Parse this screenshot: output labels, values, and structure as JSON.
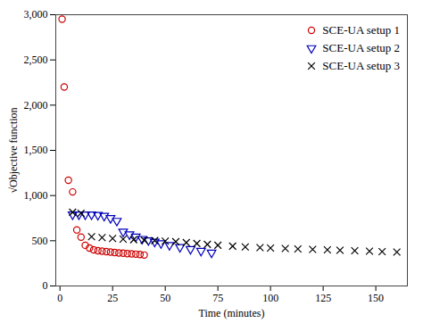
{
  "chart_data": {
    "type": "scatter",
    "xlabel": "Time (minutes)",
    "ylabel": "√Objective function",
    "xlim": [
      -2,
      165
    ],
    "ylim": [
      0,
      3000
    ],
    "xticks": [
      0,
      25,
      50,
      75,
      100,
      125,
      150
    ],
    "yticks": [
      0,
      500,
      1000,
      1500,
      2000,
      2500,
      3000
    ],
    "grid": false,
    "legend": "upper right",
    "series": [
      {
        "name": "SCE-UA setup 1",
        "color": "#cc0000",
        "marker": "circle",
        "x": [
          1,
          2,
          4,
          6,
          8,
          10,
          12,
          14,
          16,
          18,
          20,
          22,
          24,
          26,
          28,
          30,
          32,
          34,
          36,
          38,
          40
        ],
        "values": [
          2950,
          2200,
          1170,
          1040,
          620,
          540,
          450,
          420,
          400,
          390,
          385,
          380,
          375,
          370,
          365,
          362,
          358,
          355,
          352,
          348,
          342
        ]
      },
      {
        "name": "SCE-UA setup 2",
        "color": "#0000bb",
        "marker": "triangle_down",
        "x": [
          6,
          9,
          12,
          15,
          18,
          21,
          24,
          27,
          30,
          33,
          36,
          39,
          42,
          45,
          48,
          52,
          57,
          62,
          67,
          72
        ],
        "values": [
          790,
          790,
          790,
          790,
          785,
          775,
          750,
          720,
          600,
          570,
          545,
          520,
          505,
          490,
          472,
          452,
          430,
          408,
          388,
          368
        ]
      },
      {
        "name": "SCE-UA setup 3",
        "color": "#000000",
        "marker": "x",
        "x": [
          6,
          10,
          15,
          20,
          25,
          30,
          35,
          40,
          45,
          50,
          55,
          60,
          65,
          70,
          75,
          82,
          88,
          95,
          100,
          107,
          113,
          120,
          127,
          133,
          140,
          147,
          153,
          160
        ],
        "values": [
          815,
          805,
          545,
          535,
          525,
          518,
          512,
          507,
          502,
          496,
          490,
          480,
          470,
          460,
          450,
          440,
          432,
          425,
          420,
          415,
          410,
          405,
          400,
          395,
          390,
          385,
          380,
          375
        ]
      }
    ]
  }
}
